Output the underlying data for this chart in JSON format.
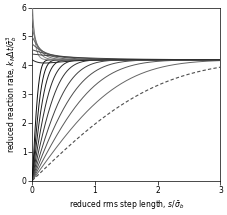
{
  "xlabel": "reduced rms step length, $s/\\bar{\\sigma}_b$",
  "ylabel": "reduced reaction rate, $k_M\\Delta t/\\bar{\\sigma}_b^3$",
  "xlim": [
    0,
    3
  ],
  "ylim": [
    0,
    6
  ],
  "xticks": [
    0,
    1,
    2,
    3
  ],
  "yticks": [
    0,
    1,
    2,
    3,
    4,
    5,
    6
  ],
  "k_eq": 4.18879,
  "upper_curves": [
    {
      "A": 2.0,
      "tau": 0.04,
      "color": "0.55"
    },
    {
      "A": 1.5,
      "tau": 0.07,
      "color": "0.50"
    },
    {
      "A": 1.1,
      "tau": 0.11,
      "color": "0.45"
    },
    {
      "A": 0.8,
      "tau": 0.17,
      "color": "0.40"
    },
    {
      "A": 0.55,
      "tau": 0.27,
      "color": "0.35"
    },
    {
      "A": 0.35,
      "tau": 0.45,
      "color": "0.30"
    },
    {
      "A": 0.2,
      "tau": 0.8,
      "color": "0.25"
    }
  ],
  "lower_curves": [
    {
      "lam": 0.08,
      "color": "0.05",
      "lw": 0.7,
      "dash": false
    },
    {
      "lam": 0.12,
      "color": "0.08",
      "lw": 0.7,
      "dash": false
    },
    {
      "lam": 0.17,
      "color": "0.12",
      "lw": 0.7,
      "dash": false
    },
    {
      "lam": 0.24,
      "color": "0.16",
      "lw": 0.7,
      "dash": false
    },
    {
      "lam": 0.33,
      "color": "0.20",
      "lw": 0.7,
      "dash": false
    },
    {
      "lam": 0.45,
      "color": "0.25",
      "lw": 0.7,
      "dash": false
    },
    {
      "lam": 0.6,
      "color": "0.30",
      "lw": 0.7,
      "dash": false
    },
    {
      "lam": 0.8,
      "color": "0.35",
      "lw": 0.7,
      "dash": false
    },
    {
      "lam": 1.1,
      "color": "0.40",
      "lw": 0.7,
      "dash": false
    },
    {
      "lam": 1.6,
      "color": "0.30",
      "lw": 0.8,
      "dash": true
    }
  ]
}
